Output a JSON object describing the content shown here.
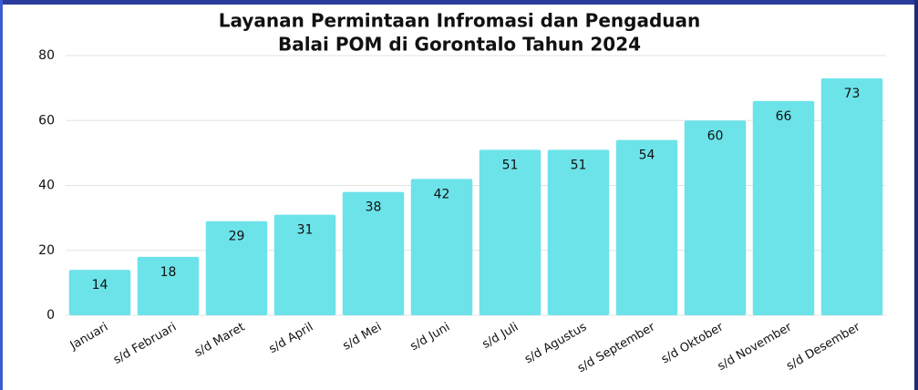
{
  "chart_data": {
    "type": "bar",
    "title": [
      "Layanan Permintaan Infromasi dan Pengaduan",
      "Balai POM di Gorontalo Tahun 2024"
    ],
    "categories": [
      "Januari",
      "s/d Februari",
      "s/d Maret",
      "s/d April",
      "s/d Mei",
      "s/d Juni",
      "s/d Juli",
      "s/d Agustus",
      "s/d September",
      "s/d Oktober",
      "s/d November",
      "s/d Desember"
    ],
    "values": [
      14,
      18,
      29,
      31,
      38,
      42,
      51,
      51,
      54,
      60,
      66,
      73
    ],
    "color": "#6ce3e9",
    "ylim": [
      0,
      80
    ],
    "yticks": [
      0,
      20,
      40,
      60,
      80
    ],
    "grid": true
  }
}
